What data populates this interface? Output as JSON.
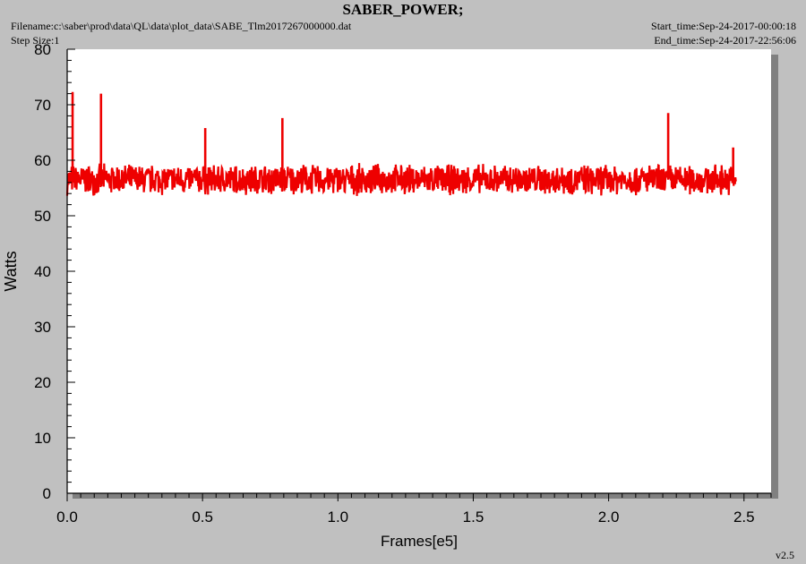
{
  "header": {
    "title": "SABER_POWER;",
    "filename": "Filename:c:\\saber\\prod\\data\\QL\\data\\plot_data\\SABE_Tlm2017267000000.dat",
    "step_size": "Step Size:1",
    "start_time": "Start_time:Sep-24-2017-00:00:18",
    "end_time": "End_time:Sep-24-2017-22:56:06"
  },
  "footer": {
    "version": "v2.5"
  },
  "colors": {
    "series": "#ee0000",
    "plot_bg": "#ffffff",
    "page_bg": "#c0c0c0",
    "shadow": "#808080"
  },
  "chart_data": {
    "type": "line",
    "title": "SABER_POWER;",
    "xlabel": "Frames[e5]",
    "ylabel": "Watts",
    "xlim": [
      0,
      2.6
    ],
    "ylim": [
      0,
      80
    ],
    "x_ticks": [
      "0.0",
      "0.5",
      "1.0",
      "1.5",
      "2.0",
      "2.5"
    ],
    "y_ticks": [
      "0",
      "10",
      "20",
      "30",
      "40",
      "50",
      "60",
      "70",
      "80"
    ],
    "grid": false,
    "legend": "none",
    "series": [
      {
        "x_range": [
          0,
          2.47
        ],
        "baseline": 56.5,
        "noise_min": 53.5,
        "noise_max": 59.5,
        "spikes": [
          {
            "x": 0.02,
            "y": 72.3
          },
          {
            "x": 0.125,
            "y": 72.0
          },
          {
            "x": 0.51,
            "y": 65.8
          },
          {
            "x": 0.795,
            "y": 67.6
          },
          {
            "x": 2.22,
            "y": 68.5
          },
          {
            "x": 2.46,
            "y": 62.3
          }
        ]
      }
    ]
  }
}
